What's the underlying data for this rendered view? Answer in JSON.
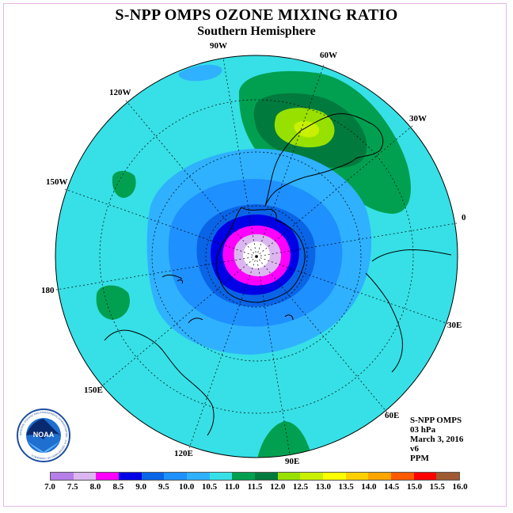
{
  "header": {
    "title": "S-NPP OMPS OZONE MIXING RATIO",
    "subtitle": "Southern Hemisphere"
  },
  "meridians": [
    {
      "label": "90W"
    },
    {
      "label": "60W"
    },
    {
      "label": "30W"
    },
    {
      "label": "0"
    },
    {
      "label": "30E"
    },
    {
      "label": "60E"
    },
    {
      "label": "90E"
    },
    {
      "label": "120E"
    },
    {
      "label": "150E"
    },
    {
      "label": "180"
    },
    {
      "label": "150W"
    },
    {
      "label": "120W"
    }
  ],
  "info": {
    "instrument": "S-NPP OMPS",
    "level": "03 hPa",
    "date": "March 3, 2016",
    "version": "v6",
    "units": "PPM"
  },
  "colorbar": {
    "labels": [
      "7.0",
      "7.5",
      "8.0",
      "8.5",
      "9.0",
      "9.5",
      "10.0",
      "10.5",
      "11.0",
      "11.5",
      "12.0",
      "12.5",
      "13.0",
      "13.5",
      "14.0",
      "14.5",
      "15.0",
      "15.5",
      "16.0"
    ],
    "colors": [
      "#b57ee8",
      "#dbb6f0",
      "#ff00ff",
      "#0000e6",
      "#0a64e6",
      "#1e90ff",
      "#2fb1ff",
      "#36e0e6",
      "#00a050",
      "#007a3d",
      "#98e000",
      "#c8f000",
      "#ffff00",
      "#ffd000",
      "#ffa500",
      "#ff5a00",
      "#ff0000",
      "#a05a32"
    ]
  },
  "logo": {
    "text": "NOAA",
    "ring_text": "NATIONAL OCEANIC AND ATMOSPHERIC ADMINISTRATION · U.S. DEPARTMENT OF COMMERCE"
  }
}
